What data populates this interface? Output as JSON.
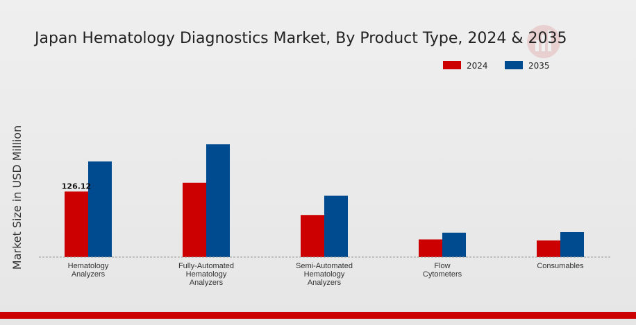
{
  "chart_data": {
    "type": "bar",
    "title": "Japan Hematology Diagnostics Market, By Product Type, 2024 & 2035",
    "xlabel": "",
    "ylabel": "Market Size in USD Million",
    "categories": [
      [
        "Hematology",
        "Analyzers"
      ],
      [
        "Fully-Automated",
        "Hematology",
        "Analyzers"
      ],
      [
        "Semi-Automated",
        "Hematology",
        "Analyzers"
      ],
      [
        "Flow",
        "Cytometers"
      ],
      [
        "Consumables"
      ]
    ],
    "series": [
      {
        "name": "2024",
        "color": "#cc0000",
        "values": [
          126.12,
          143,
          81,
          34,
          32
        ]
      },
      {
        "name": "2035",
        "color": "#004a8f",
        "values": [
          184,
          217,
          118,
          47,
          48
        ]
      }
    ],
    "data_labels": [
      {
        "series": 0,
        "index": 0,
        "text": "126.12"
      }
    ],
    "ylim": [
      0,
      300
    ],
    "grid": false,
    "legend_position": "top-right",
    "bottom_band_color": "#cc0000"
  }
}
